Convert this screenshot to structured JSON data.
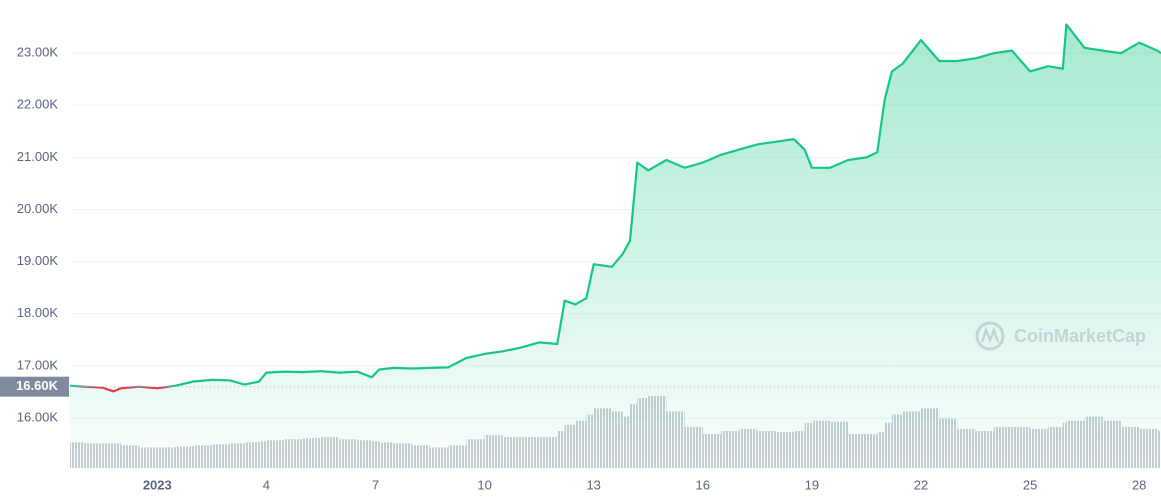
{
  "chart_data": {
    "type": "area",
    "x": [
      -1.4,
      -1,
      -0.5,
      -0.2,
      0,
      0.5,
      1,
      1.5,
      2,
      2.5,
      3,
      3.4,
      3.8,
      4,
      4.5,
      5,
      5.5,
      6,
      6.5,
      6.9,
      7.1,
      7.5,
      8,
      8.5,
      9,
      9.5,
      10,
      10.5,
      11,
      11.5,
      12,
      12.2,
      12.5,
      12.8,
      13,
      13.5,
      13.8,
      14,
      14.2,
      14.5,
      15,
      15.5,
      16,
      16.5,
      17,
      17.5,
      18,
      18.5,
      18.8,
      19,
      19.5,
      20,
      20.5,
      20.8,
      21,
      21.2,
      21.5,
      22,
      22.5,
      23,
      23.5,
      24,
      24.5,
      25,
      25.5,
      25.9,
      26,
      26.5,
      27,
      27.5,
      28,
      28.5,
      28.6
    ],
    "series": [
      {
        "color": "#16c784",
        "down_color": "#ea3943",
        "values": [
          16620,
          16600,
          16580,
          16510,
          16570,
          16600,
          16570,
          16620,
          16700,
          16730,
          16720,
          16640,
          16700,
          16870,
          16890,
          16880,
          16900,
          16870,
          16890,
          16780,
          16930,
          16960,
          16950,
          16960,
          16970,
          17150,
          17230,
          17280,
          17350,
          17450,
          17420,
          18250,
          18180,
          18300,
          18950,
          18900,
          19150,
          19400,
          20900,
          20750,
          20950,
          20800,
          20900,
          21050,
          21150,
          21250,
          21300,
          21350,
          21150,
          20800,
          20800,
          20950,
          21000,
          21100,
          22100,
          22650,
          22800,
          23250,
          22850,
          22850,
          22900,
          23000,
          23050,
          22650,
          22750,
          22700,
          23550,
          23100,
          23050,
          23000,
          23200,
          23050,
          23000
        ]
      }
    ],
    "volumes": [
      25,
      24,
      24,
      24,
      22,
      20,
      20,
      21,
      22,
      23,
      24,
      25,
      26,
      27,
      28,
      29,
      30,
      28,
      27,
      26,
      25,
      24,
      22,
      20,
      22,
      28,
      32,
      30,
      30,
      30,
      36,
      42,
      46,
      52,
      58,
      55,
      50,
      62,
      68,
      70,
      55,
      40,
      33,
      36,
      38,
      36,
      35,
      36,
      44,
      46,
      45,
      33,
      33,
      35,
      44,
      52,
      55,
      58,
      48,
      38,
      36,
      40,
      40,
      38,
      40,
      44,
      46,
      50,
      46,
      40,
      38,
      36,
      34
    ],
    "volume_color": "#c9ccd4",
    "xlim": [
      -1.4,
      28.6
    ],
    "xticks": [
      {
        "value": 1,
        "label": "2023"
      },
      4,
      7,
      10,
      13,
      16,
      19,
      22,
      25,
      28
    ],
    "ylim": [
      15040,
      24020
    ],
    "yticks": [
      {
        "value": 16000,
        "label": "16.00K"
      },
      {
        "value": 17000,
        "label": "17.00K"
      },
      {
        "value": 18000,
        "label": "18.00K"
      },
      {
        "value": 19000,
        "label": "19.00K"
      },
      {
        "value": 20000,
        "label": "20.00K"
      },
      {
        "value": 21000,
        "label": "21.00K"
      },
      {
        "value": 22000,
        "label": "22.00K"
      },
      {
        "value": 23000,
        "label": "23.00K"
      }
    ],
    "reference": {
      "value": 16600,
      "label": "16.60K"
    },
    "grid": true,
    "watermark": "CoinMarketCap"
  }
}
